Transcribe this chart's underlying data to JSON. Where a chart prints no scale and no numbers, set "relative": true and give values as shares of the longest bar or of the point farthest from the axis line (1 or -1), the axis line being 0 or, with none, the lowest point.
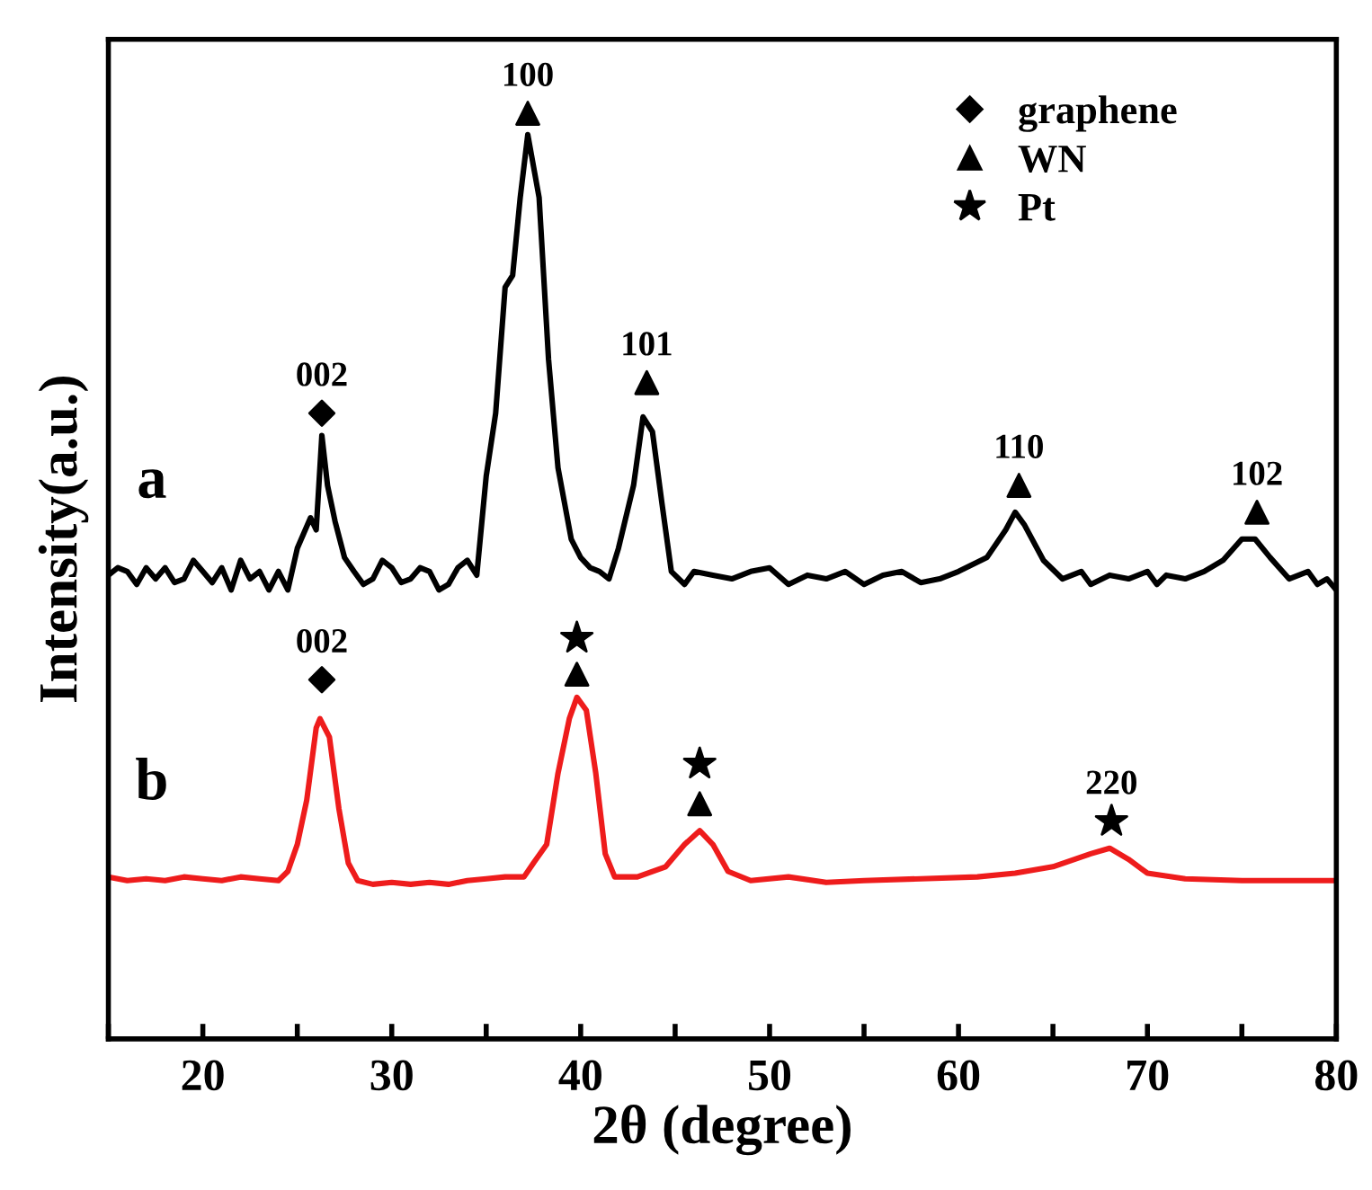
{
  "chart_data": {
    "type": "line",
    "relative": true,
    "xlabel": "2θ (degree)",
    "ylabel": "Intensity(a.u.)",
    "xlim": [
      15,
      80
    ],
    "xticks": [
      {
        "value": 15,
        "label": null
      },
      20,
      {
        "value": 25,
        "label": null
      },
      30,
      {
        "value": 35,
        "label": null
      },
      40,
      {
        "value": 45,
        "label": null
      },
      50,
      {
        "value": 55,
        "label": null
      },
      60,
      {
        "value": 65,
        "label": null
      },
      70,
      {
        "value": 75,
        "label": null
      },
      80
    ],
    "tick_labels": "x",
    "legend": "top right",
    "series": [
      {
        "name": "a",
        "color": "#000000",
        "x": [
          15,
          15.5,
          16,
          16.5,
          17,
          17.5,
          18,
          18.5,
          19,
          19.5,
          20,
          20.5,
          21,
          21.5,
          22,
          22.5,
          23,
          23.5,
          24,
          24.5,
          25,
          25.7,
          26.0,
          26.3,
          26.6,
          27,
          27.5,
          28,
          28.5,
          29,
          29.5,
          30,
          30.5,
          31,
          31.5,
          32,
          32.5,
          33,
          33.5,
          34,
          34.5,
          35,
          35.5,
          36,
          36.4,
          36.8,
          37.2,
          37.8,
          38.3,
          38.8,
          39.5,
          40,
          40.5,
          41,
          41.5,
          42,
          42.8,
          43.3,
          43.8,
          44.3,
          44.8,
          45.5,
          46,
          47,
          48,
          49,
          50,
          51,
          52,
          53,
          54,
          55,
          56,
          57,
          58,
          59,
          60,
          61.5,
          62.5,
          63,
          63.5,
          64.5,
          65.5,
          66.5,
          67,
          68,
          69,
          70,
          70.5,
          71,
          72,
          73,
          74,
          75,
          75.7,
          76.5,
          77.5,
          78.5,
          79,
          79.5,
          80
        ],
        "values": [
          0.501,
          0.509,
          0.505,
          0.491,
          0.509,
          0.497,
          0.509,
          0.493,
          0.497,
          0.517,
          0.505,
          0.493,
          0.509,
          0.485,
          0.517,
          0.497,
          0.505,
          0.485,
          0.505,
          0.485,
          0.53,
          0.563,
          0.55,
          0.652,
          0.598,
          0.559,
          0.52,
          0.505,
          0.491,
          0.497,
          0.517,
          0.509,
          0.493,
          0.497,
          0.509,
          0.505,
          0.485,
          0.491,
          0.509,
          0.517,
          0.501,
          0.608,
          0.676,
          0.812,
          0.825,
          0.909,
          0.977,
          0.909,
          0.734,
          0.617,
          0.54,
          0.52,
          0.509,
          0.505,
          0.497,
          0.53,
          0.598,
          0.672,
          0.656,
          0.579,
          0.505,
          0.491,
          0.505,
          0.501,
          0.497,
          0.505,
          0.509,
          0.491,
          0.501,
          0.497,
          0.505,
          0.491,
          0.501,
          0.505,
          0.493,
          0.497,
          0.505,
          0.52,
          0.55,
          0.569,
          0.555,
          0.517,
          0.497,
          0.505,
          0.491,
          0.501,
          0.497,
          0.505,
          0.491,
          0.501,
          0.497,
          0.505,
          0.517,
          0.54,
          0.54,
          0.52,
          0.497,
          0.505,
          0.491,
          0.497,
          0.485
        ]
      },
      {
        "name": "b",
        "color": "#ee1c1c",
        "x": [
          15,
          16,
          17,
          18,
          19,
          20,
          21,
          22,
          23,
          24,
          24.5,
          25,
          25.5,
          26.0,
          26.2,
          26.7,
          27.2,
          27.7,
          28.2,
          29,
          30,
          31,
          32,
          33,
          34,
          35,
          36,
          37,
          37.5,
          38.2,
          38.8,
          39.4,
          39.8,
          40.3,
          40.8,
          41.3,
          41.8,
          43,
          44.5,
          45.5,
          46.3,
          47,
          47.8,
          49,
          51,
          53,
          55,
          58,
          61,
          63,
          65,
          67,
          68,
          69,
          70,
          72,
          75,
          78,
          80
        ],
        "values": [
          0.175,
          0.171,
          0.173,
          0.171,
          0.175,
          0.173,
          0.171,
          0.175,
          0.173,
          0.171,
          0.181,
          0.21,
          0.258,
          0.336,
          0.346,
          0.326,
          0.249,
          0.19,
          0.171,
          0.167,
          0.169,
          0.167,
          0.169,
          0.167,
          0.171,
          0.173,
          0.175,
          0.175,
          0.19,
          0.21,
          0.287,
          0.346,
          0.369,
          0.355,
          0.287,
          0.2,
          0.175,
          0.175,
          0.186,
          0.21,
          0.225,
          0.21,
          0.181,
          0.171,
          0.175,
          0.169,
          0.171,
          0.173,
          0.175,
          0.179,
          0.186,
          0.2,
          0.206,
          0.194,
          0.179,
          0.173,
          0.171,
          0.171,
          0.171
        ]
      },
      {
        "name": "graphene",
        "type": "scatter",
        "marker": "diamond",
        "color": "#000000",
        "x": [
          26.3,
          26.3
        ],
        "values": [
          0.676,
          0.388
        ]
      },
      {
        "name": "WN",
        "type": "scatter",
        "marker": "triangle",
        "color": "#000000",
        "x": [
          37.2,
          43.5,
          63.2,
          75.8,
          39.8,
          46.3
        ],
        "values": [
          1.0,
          0.709,
          0.598,
          0.569,
          0.394,
          0.254
        ]
      },
      {
        "name": "Pt",
        "type": "scatter",
        "marker": "star",
        "color": "#000000",
        "x": [
          39.8,
          46.3,
          68.1
        ],
        "values": [
          0.433,
          0.297,
          0.235
        ]
      }
    ],
    "annotations": [
      {
        "text": "002",
        "x": 26.3,
        "y": 0.676
      },
      {
        "text": "100",
        "x": 37.2,
        "y": 1.0
      },
      {
        "text": "101",
        "x": 43.5,
        "y": 0.709
      },
      {
        "text": "110",
        "x": 63.2,
        "y": 0.598
      },
      {
        "text": "102",
        "x": 75.8,
        "y": 0.569
      },
      {
        "text": "002",
        "x": 26.3,
        "y": 0.388
      },
      {
        "text": "220",
        "x": 68.1,
        "y": 0.235
      }
    ]
  }
}
